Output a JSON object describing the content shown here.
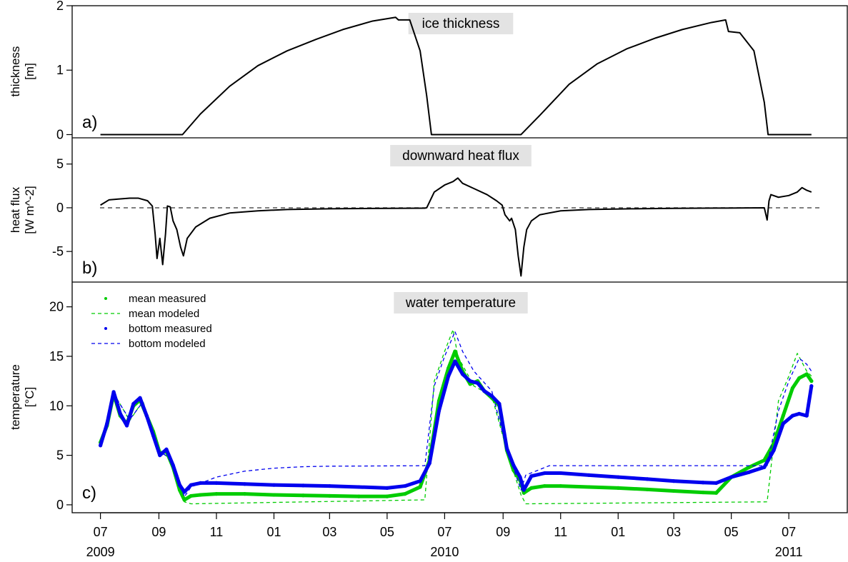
{
  "chart_data": [
    {
      "type": "line",
      "panel": "a)",
      "title": "ice thickness",
      "ylabel": [
        "thickness",
        "[m]"
      ],
      "ylim": [
        -0.05,
        2.0
      ],
      "yticks": [
        0,
        1,
        2
      ],
      "series": [
        {
          "color": "#000000",
          "style": "solid",
          "x": [
            "2009-07-01",
            "2009-09-26",
            "2009-10-15",
            "2009-11-15",
            "2009-12-15",
            "2010-01-15",
            "2010-02-15",
            "2010-03-15",
            "2010-04-15",
            "2010-05-10",
            "2010-05-13",
            "2010-05-25",
            "2010-06-05",
            "2010-06-12",
            "2010-06-17",
            "2010-09-20",
            "2010-10-10",
            "2010-11-10",
            "2010-12-10",
            "2011-01-10",
            "2011-02-10",
            "2011-03-10",
            "2011-04-10",
            "2011-04-25",
            "2011-04-28",
            "2011-05-10",
            "2011-05-25",
            "2011-06-05",
            "2011-06-09",
            "2011-07-25"
          ],
          "y": [
            0,
            0,
            0.32,
            0.75,
            1.07,
            1.3,
            1.48,
            1.63,
            1.76,
            1.82,
            1.78,
            1.78,
            1.3,
            0.6,
            0,
            0,
            0.3,
            0.78,
            1.1,
            1.33,
            1.5,
            1.63,
            1.74,
            1.78,
            1.6,
            1.58,
            1.3,
            0.5,
            0,
            0
          ]
        }
      ]
    },
    {
      "type": "line",
      "panel": "b)",
      "title": "downward heat flux",
      "ylabel": [
        "heat flux",
        "[W m^-2]"
      ],
      "ylim": [
        -8.5,
        8
      ],
      "yticks": [
        -5,
        0,
        5
      ],
      "reference_line": {
        "y": 0,
        "style": "dashed"
      },
      "series": [
        {
          "color": "#000000",
          "style": "solid",
          "x": [
            "2009-07-01",
            "2009-07-10",
            "2009-07-20",
            "2009-08-01",
            "2009-08-10",
            "2009-08-20",
            "2009-08-25",
            "2009-08-28",
            "2009-08-30",
            "2009-09-02",
            "2009-09-05",
            "2009-09-08",
            "2009-09-10",
            "2009-09-13",
            "2009-09-16",
            "2009-09-20",
            "2009-09-24",
            "2009-09-27",
            "2009-10-01",
            "2009-10-10",
            "2009-10-25",
            "2009-11-15",
            "2009-12-15",
            "2010-01-15",
            "2010-03-01",
            "2010-04-15",
            "2010-06-10",
            "2010-06-12",
            "2010-06-20",
            "2010-07-01",
            "2010-07-10",
            "2010-07-15",
            "2010-07-20",
            "2010-08-01",
            "2010-08-15",
            "2010-08-25",
            "2010-08-31",
            "2010-09-03",
            "2010-09-08",
            "2010-09-10",
            "2010-09-14",
            "2010-09-17",
            "2010-09-20",
            "2010-09-23",
            "2010-09-26",
            "2010-10-01",
            "2010-10-10",
            "2010-11-01",
            "2010-12-01",
            "2011-01-15",
            "2011-03-01",
            "2011-04-15",
            "2011-06-05",
            "2011-06-08",
            "2011-06-10",
            "2011-06-12",
            "2011-06-20",
            "2011-07-01",
            "2011-07-10",
            "2011-07-15",
            "2011-07-20",
            "2011-07-25"
          ],
          "y": [
            0.3,
            0.9,
            1.0,
            1.1,
            1.1,
            0.8,
            0.2,
            -3.0,
            -5.8,
            -3.5,
            -6.5,
            -3.0,
            0.2,
            0.1,
            -1.5,
            -2.5,
            -4.5,
            -5.5,
            -3.5,
            -2.2,
            -1.2,
            -0.6,
            -0.35,
            -0.2,
            -0.12,
            -0.08,
            -0.05,
            0.0,
            1.8,
            2.6,
            3.0,
            3.4,
            2.8,
            2.2,
            1.5,
            0.8,
            0.3,
            -0.8,
            -1.5,
            -1.2,
            -2.5,
            -5.5,
            -7.8,
            -4.5,
            -2.5,
            -1.5,
            -0.8,
            -0.35,
            -0.2,
            -0.12,
            -0.07,
            -0.04,
            0.0,
            -1.4,
            0.8,
            1.5,
            1.2,
            1.4,
            1.8,
            2.3,
            2.0,
            1.8
          ]
        }
      ]
    },
    {
      "type": "line",
      "panel": "c)",
      "title": "water temperature",
      "ylabel": [
        "temperature",
        "[°C]"
      ],
      "ylim": [
        -0.8,
        22.5
      ],
      "yticks": [
        0,
        5,
        10,
        15,
        20
      ],
      "xlim": [
        "2009-06-01",
        "2011-09-01"
      ],
      "xticks": [
        "2009-07-01",
        "2009-09-01",
        "2009-11-01",
        "2010-01-01",
        "2010-03-01",
        "2010-05-01",
        "2010-07-01",
        "2010-09-01",
        "2010-11-01",
        "2011-01-01",
        "2011-03-01",
        "2011-05-01",
        "2011-07-01"
      ],
      "xtick_labels": [
        "07",
        "09",
        "11",
        "01",
        "03",
        "05",
        "07",
        "09",
        "11",
        "01",
        "03",
        "05",
        "07"
      ],
      "xyear_labels": [
        {
          "x": "2009-07-01",
          "label": "2009"
        },
        {
          "x": "2010-07-01",
          "label": "2010"
        },
        {
          "x": "2011-07-01",
          "label": "2011"
        }
      ],
      "series": [
        {
          "name": "mean measured",
          "color": "#00cc00",
          "style": "points",
          "x": [
            "2009-07-01",
            "2009-07-08",
            "2009-07-15",
            "2009-07-22",
            "2009-07-29",
            "2009-08-05",
            "2009-08-12",
            "2009-08-19",
            "2009-08-26",
            "2009-09-02",
            "2009-09-09",
            "2009-09-16",
            "2009-09-23",
            "2009-09-28",
            "2009-10-05",
            "2009-10-15",
            "2009-11-01",
            "2009-12-01",
            "2010-01-01",
            "2010-02-01",
            "2010-03-01",
            "2010-04-01",
            "2010-05-01",
            "2010-05-20",
            "2010-06-05",
            "2010-06-15",
            "2010-06-25",
            "2010-07-05",
            "2010-07-12",
            "2010-07-20",
            "2010-07-28",
            "2010-08-05",
            "2010-08-12",
            "2010-08-20",
            "2010-08-28",
            "2010-09-05",
            "2010-09-12",
            "2010-09-19",
            "2010-09-23",
            "2010-10-01",
            "2010-10-15",
            "2010-11-01",
            "2010-12-01",
            "2011-01-01",
            "2011-02-01",
            "2011-03-01",
            "2011-04-01",
            "2011-04-15",
            "2011-05-01",
            "2011-05-20",
            "2011-06-05",
            "2011-06-15",
            "2011-06-25",
            "2011-07-05",
            "2011-07-12",
            "2011-07-20",
            "2011-07-25"
          ],
          "y": [
            6.3,
            8.0,
            11.2,
            9.0,
            8.2,
            10.0,
            10.6,
            9.0,
            7.4,
            5.2,
            5.4,
            3.8,
            1.5,
            0.5,
            0.9,
            1.0,
            1.1,
            1.1,
            1.0,
            0.95,
            0.9,
            0.85,
            0.85,
            1.1,
            1.8,
            4.5,
            10.5,
            13.8,
            15.5,
            13.5,
            12.2,
            12.5,
            11.5,
            10.8,
            10.0,
            5.5,
            3.5,
            2.5,
            1.2,
            1.7,
            1.9,
            1.9,
            1.8,
            1.7,
            1.55,
            1.4,
            1.25,
            1.2,
            2.8,
            3.8,
            4.5,
            6.2,
            9.0,
            11.8,
            12.8,
            13.2,
            12.5
          ]
        },
        {
          "name": "mean modeled",
          "color": "#00cc00",
          "style": "dashed",
          "x": [
            "2009-07-01",
            "2009-07-15",
            "2009-08-01",
            "2009-08-15",
            "2009-09-01",
            "2009-09-15",
            "2009-09-28",
            "2009-10-05",
            "2010-06-10",
            "2010-06-20",
            "2010-07-01",
            "2010-07-10",
            "2010-07-15",
            "2010-08-01",
            "2010-08-20",
            "2010-09-05",
            "2010-09-20",
            "2010-09-25",
            "2011-06-08",
            "2011-06-20",
            "2011-07-01",
            "2011-07-10",
            "2011-07-20",
            "2011-07-25"
          ],
          "y": [
            6.2,
            11.3,
            8.5,
            10.5,
            5.5,
            4.5,
            0.3,
            0.1,
            0.5,
            12.5,
            15.5,
            17.7,
            15.0,
            12.0,
            11.0,
            5.5,
            1.0,
            0.1,
            0.3,
            10.5,
            13.0,
            15.3,
            13.5,
            13.0
          ]
        },
        {
          "name": "bottom measured",
          "color": "#0000ee",
          "style": "points",
          "x": [
            "2009-07-01",
            "2009-07-08",
            "2009-07-15",
            "2009-07-22",
            "2009-07-29",
            "2009-08-05",
            "2009-08-12",
            "2009-08-19",
            "2009-08-26",
            "2009-09-02",
            "2009-09-09",
            "2009-09-16",
            "2009-09-23",
            "2009-09-28",
            "2009-10-05",
            "2009-10-15",
            "2009-11-01",
            "2009-12-01",
            "2010-01-01",
            "2010-02-01",
            "2010-03-01",
            "2010-04-01",
            "2010-05-01",
            "2010-05-20",
            "2010-06-05",
            "2010-06-15",
            "2010-06-25",
            "2010-07-05",
            "2010-07-12",
            "2010-07-20",
            "2010-07-28",
            "2010-08-05",
            "2010-08-12",
            "2010-08-20",
            "2010-08-28",
            "2010-09-05",
            "2010-09-12",
            "2010-09-19",
            "2010-09-23",
            "2010-10-01",
            "2010-10-15",
            "2010-11-01",
            "2010-12-01",
            "2011-01-01",
            "2011-02-01",
            "2011-03-01",
            "2011-04-01",
            "2011-04-15",
            "2011-05-01",
            "2011-05-20",
            "2011-06-05",
            "2011-06-15",
            "2011-06-25",
            "2011-07-05",
            "2011-07-12",
            "2011-07-20",
            "2011-07-25"
          ],
          "y": [
            6.0,
            8.2,
            11.4,
            9.2,
            8.0,
            10.2,
            10.8,
            9.0,
            7.0,
            5.0,
            5.6,
            4.0,
            2.0,
            1.3,
            2.0,
            2.2,
            2.2,
            2.1,
            2.0,
            1.95,
            1.9,
            1.8,
            1.7,
            1.9,
            2.4,
            4.2,
            9.5,
            13.0,
            14.5,
            13.2,
            12.5,
            12.3,
            11.5,
            11.0,
            10.2,
            5.7,
            4.0,
            2.8,
            1.5,
            2.9,
            3.2,
            3.2,
            3.0,
            2.8,
            2.6,
            2.4,
            2.25,
            2.2,
            2.8,
            3.3,
            3.8,
            5.5,
            8.2,
            9.0,
            9.2,
            9.0,
            12.0
          ]
        },
        {
          "name": "bottom modeled",
          "color": "#0000ee",
          "style": "dashed",
          "x": [
            "2009-07-01",
            "2009-07-15",
            "2009-08-01",
            "2009-08-15",
            "2009-09-01",
            "2009-09-15",
            "2009-09-28",
            "2009-10-05",
            "2009-11-01",
            "2009-12-01",
            "2010-01-01",
            "2010-02-01",
            "2010-03-01",
            "2010-06-10",
            "2010-06-20",
            "2010-07-01",
            "2010-07-12",
            "2010-07-20",
            "2010-08-01",
            "2010-08-20",
            "2010-09-05",
            "2010-09-20",
            "2010-09-25",
            "2010-10-20",
            "2011-06-08",
            "2011-06-20",
            "2011-07-01",
            "2011-07-12",
            "2011-07-20",
            "2011-07-25"
          ],
          "y": [
            6.2,
            11.2,
            8.6,
            10.4,
            5.4,
            4.6,
            0.8,
            1.8,
            2.8,
            3.4,
            3.7,
            3.85,
            3.9,
            3.95,
            12.0,
            15.0,
            17.5,
            15.5,
            13.5,
            11.5,
            5.6,
            1.5,
            3.0,
            3.95,
            3.95,
            9.5,
            12.5,
            14.8,
            14.2,
            13.5
          ]
        }
      ]
    }
  ]
}
